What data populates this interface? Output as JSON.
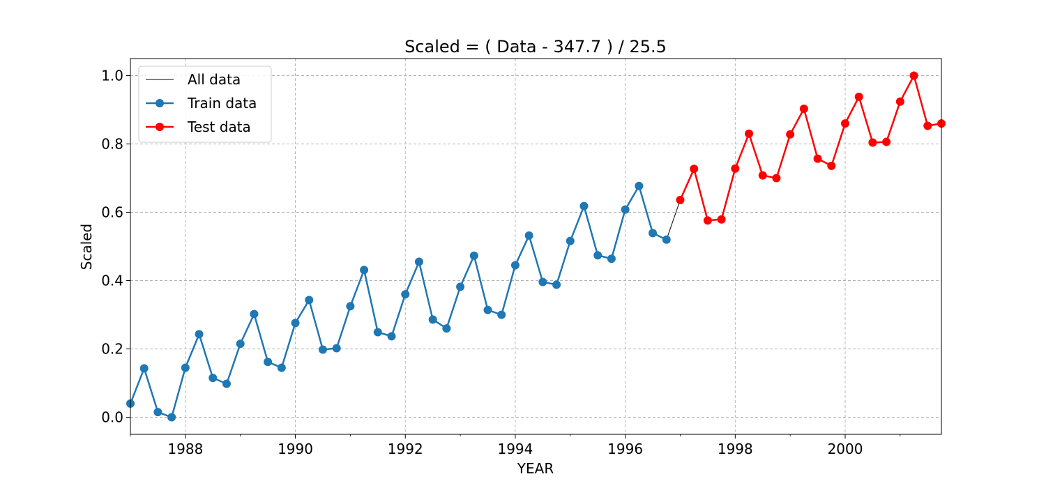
{
  "chart_data": {
    "type": "line",
    "title": "Scaled = ( Data - 347.7 ) / 25.5",
    "xlabel": "YEAR",
    "ylabel": "Scaled",
    "xlim": [
      1987.0,
      2001.75
    ],
    "ylim": [
      -0.05,
      1.05
    ],
    "x_ticks": [
      1988,
      1990,
      1992,
      1994,
      1996,
      1998,
      2000
    ],
    "x_tick_labels": [
      "1988",
      "1990",
      "1992",
      "1994",
      "1996",
      "1998",
      "2000"
    ],
    "y_ticks": [
      0.0,
      0.2,
      0.4,
      0.6,
      0.8,
      1.0
    ],
    "y_tick_labels": [
      "0.0",
      "0.2",
      "0.4",
      "0.6",
      "0.8",
      "1.0"
    ],
    "grid": true,
    "legend_position": "upper-left",
    "series": [
      {
        "name": "All data",
        "color": "#000000",
        "marker": "none",
        "x": [
          1987.0,
          1987.25,
          1987.5,
          1987.75,
          1988.0,
          1988.25,
          1988.5,
          1988.75,
          1989.0,
          1989.25,
          1989.5,
          1989.75,
          1990.0,
          1990.25,
          1990.5,
          1990.75,
          1991.0,
          1991.25,
          1991.5,
          1991.75,
          1992.0,
          1992.25,
          1992.5,
          1992.75,
          1993.0,
          1993.25,
          1993.5,
          1993.75,
          1994.0,
          1994.25,
          1994.5,
          1994.75,
          1995.0,
          1995.25,
          1995.5,
          1995.75,
          1996.0,
          1996.25,
          1996.5,
          1996.75,
          1997.0,
          1997.25,
          1997.5,
          1997.75,
          1998.0,
          1998.25,
          1998.5,
          1998.75,
          1999.0,
          1999.25,
          1999.5,
          1999.75,
          2000.0,
          2000.25,
          2000.5,
          2000.75,
          2001.0,
          2001.25,
          2001.5,
          2001.75
        ],
        "y": [
          0.04,
          0.143,
          0.015,
          0.0,
          0.145,
          0.243,
          0.115,
          0.098,
          0.215,
          0.302,
          0.162,
          0.145,
          0.276,
          0.343,
          0.198,
          0.202,
          0.325,
          0.431,
          0.249,
          0.237,
          0.36,
          0.455,
          0.286,
          0.26,
          0.382,
          0.473,
          0.314,
          0.3,
          0.445,
          0.532,
          0.396,
          0.388,
          0.516,
          0.618,
          0.474,
          0.464,
          0.608,
          0.677,
          0.539,
          0.52,
          0.636,
          0.727,
          0.576,
          0.579,
          0.728,
          0.83,
          0.708,
          0.7,
          0.828,
          0.903,
          0.757,
          0.736,
          0.86,
          0.938,
          0.804,
          0.806,
          0.924,
          1.0,
          0.853,
          0.86
        ]
      },
      {
        "name": "Train data",
        "color": "#1f77b4",
        "marker": "circle",
        "x": [
          1987.0,
          1987.25,
          1987.5,
          1987.75,
          1988.0,
          1988.25,
          1988.5,
          1988.75,
          1989.0,
          1989.25,
          1989.5,
          1989.75,
          1990.0,
          1990.25,
          1990.5,
          1990.75,
          1991.0,
          1991.25,
          1991.5,
          1991.75,
          1992.0,
          1992.25,
          1992.5,
          1992.75,
          1993.0,
          1993.25,
          1993.5,
          1993.75,
          1994.0,
          1994.25,
          1994.5,
          1994.75,
          1995.0,
          1995.25,
          1995.5,
          1995.75,
          1996.0,
          1996.25,
          1996.5,
          1996.75
        ],
        "y": [
          0.04,
          0.143,
          0.015,
          0.0,
          0.145,
          0.243,
          0.115,
          0.098,
          0.215,
          0.302,
          0.162,
          0.145,
          0.276,
          0.343,
          0.198,
          0.202,
          0.325,
          0.431,
          0.249,
          0.237,
          0.36,
          0.455,
          0.286,
          0.26,
          0.382,
          0.473,
          0.314,
          0.3,
          0.445,
          0.532,
          0.396,
          0.388,
          0.516,
          0.618,
          0.474,
          0.464,
          0.608,
          0.677,
          0.539,
          0.52
        ]
      },
      {
        "name": "Test data",
        "color": "#ff0000",
        "marker": "circle",
        "x": [
          1997.0,
          1997.25,
          1997.5,
          1997.75,
          1998.0,
          1998.25,
          1998.5,
          1998.75,
          1999.0,
          1999.25,
          1999.5,
          1999.75,
          2000.0,
          2000.25,
          2000.5,
          2000.75,
          2001.0,
          2001.25,
          2001.5,
          2001.75
        ],
        "y": [
          0.636,
          0.727,
          0.576,
          0.579,
          0.728,
          0.83,
          0.708,
          0.7,
          0.828,
          0.903,
          0.757,
          0.736,
          0.86,
          0.938,
          0.804,
          0.806,
          0.924,
          1.0,
          0.853,
          0.86
        ]
      }
    ]
  }
}
